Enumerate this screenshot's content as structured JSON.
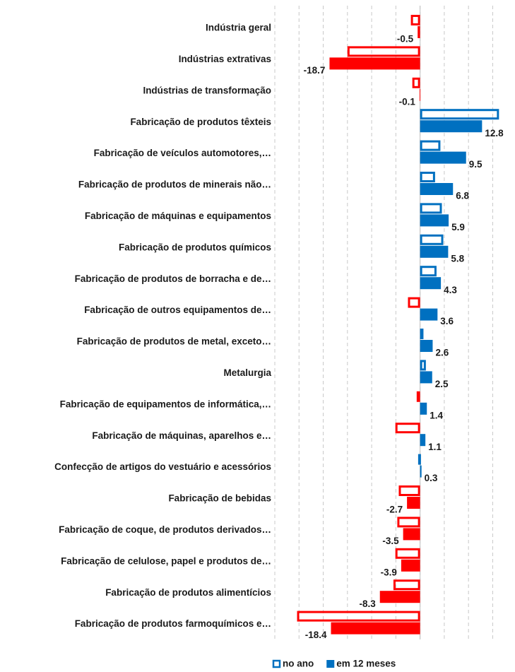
{
  "chart_data": {
    "type": "bar",
    "orientation": "horizontal",
    "categories": [
      "Indústria geral",
      "Indústrias extrativas",
      "Indústrias de transformação",
      "Fabricação de produtos têxteis",
      "Fabricação de veículos automotores,…",
      "Fabricação de produtos de minerais não…",
      "Fabricação de máquinas e equipamentos",
      "Fabricação de produtos químicos",
      "Fabricação de produtos de borracha e de…",
      "Fabricação de outros equipamentos de…",
      "Fabricação de produtos de metal, exceto…",
      "Metalurgia",
      "Fabricação de equipamentos de informática,…",
      "Fabricação de máquinas, aparelhos e…",
      "Confecção de artigos do vestuário e acessórios",
      "Fabricação de bebidas",
      "Fabricação de coque, de produtos derivados…",
      "Fabricação de celulose, papel e produtos de…",
      "Fabricação de produtos alimentícios",
      "Fabricação de produtos farmoquímicos e…"
    ],
    "series": [
      {
        "name": "no ano",
        "style": "outline",
        "color": "#0070c0",
        "values": [
          -1.9,
          -15.0,
          -1.6,
          16.3,
          4.2,
          3.1,
          4.5,
          4.8,
          3.4,
          -2.5,
          0.7,
          1.2,
          -0.7,
          -5.1,
          -0.4,
          -4.4,
          -4.7,
          -5.1,
          -5.5,
          -25.4
        ],
        "colors": [
          "#ff0000",
          "#ff0000",
          "#ff0000",
          "#0070c0",
          "#0070c0",
          "#0070c0",
          "#0070c0",
          "#0070c0",
          "#0070c0",
          "#ff0000",
          "#0070c0",
          "#0070c0",
          "#ff0000",
          "#ff0000",
          "#0070c0",
          "#ff0000",
          "#ff0000",
          "#ff0000",
          "#ff0000",
          "#ff0000"
        ]
      },
      {
        "name": "em 12 meses",
        "style": "filled",
        "color": "#0070c0",
        "values": [
          -0.5,
          -18.7,
          -0.1,
          12.8,
          9.5,
          6.8,
          5.9,
          5.8,
          4.3,
          3.6,
          2.6,
          2.5,
          1.4,
          1.1,
          0.3,
          -2.7,
          -3.5,
          -3.9,
          -8.3,
          -18.4
        ],
        "colors": [
          "#ff0000",
          "#ff0000",
          "#ff0000",
          "#0070c0",
          "#0070c0",
          "#0070c0",
          "#0070c0",
          "#0070c0",
          "#0070c0",
          "#0070c0",
          "#0070c0",
          "#0070c0",
          "#0070c0",
          "#0070c0",
          "#0070c0",
          "#ff0000",
          "#ff0000",
          "#ff0000",
          "#ff0000",
          "#ff0000"
        ]
      }
    ],
    "xlim": [
      -30,
      18
    ],
    "xticks": [
      -30,
      -25,
      -20,
      -15,
      -10,
      -5,
      0,
      5,
      10,
      15
    ],
    "grid": true,
    "legend": "bottom"
  }
}
